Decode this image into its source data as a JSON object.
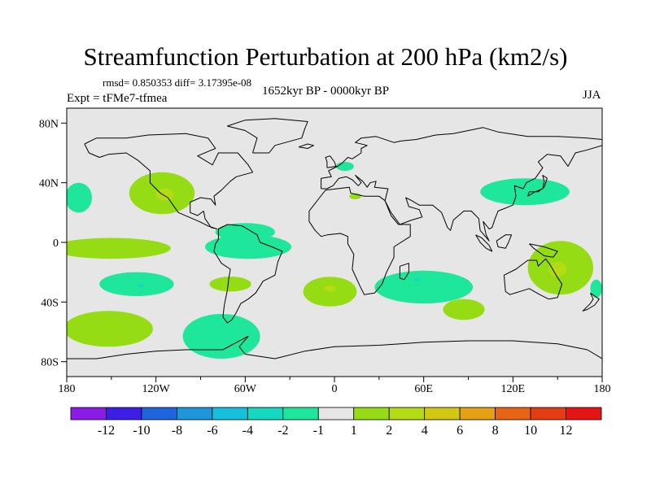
{
  "header": {
    "title": "Streamfunction Perturbation at 200 hPa (km2/s)",
    "stats": "rmsd= 0.850353 diff= 3.17395e-08",
    "experiment": "Expt = tFMe7-tfmea",
    "period": "1652kyr BP - 0000kyr BP",
    "season": "JJA"
  },
  "chart_data": {
    "type": "contour-map",
    "title": "Streamfunction Perturbation at 200 hPa (km2/s)",
    "units": "km2/s",
    "projection": "cylindrical-equidistant",
    "x_range": [
      -180,
      180
    ],
    "y_range": [
      -90,
      90
    ],
    "x_ticks": [
      {
        "value": -180,
        "label": "180"
      },
      {
        "value": -120,
        "label": "120W"
      },
      {
        "value": -60,
        "label": "60W"
      },
      {
        "value": 0,
        "label": "0"
      },
      {
        "value": 60,
        "label": "60E"
      },
      {
        "value": 120,
        "label": "120E"
      },
      {
        "value": 180,
        "label": "180"
      }
    ],
    "y_ticks": [
      {
        "value": 80,
        "label": "80N"
      },
      {
        "value": 40,
        "label": "40N"
      },
      {
        "value": 0,
        "label": "0"
      },
      {
        "value": -40,
        "label": "40S"
      },
      {
        "value": -80,
        "label": "80S"
      }
    ],
    "background_color": "#e6e6e6",
    "colorbar": {
      "labels": [
        "-12",
        "-10",
        "-8",
        "-6",
        "-4",
        "-2",
        "-1",
        "1",
        "2",
        "4",
        "6",
        "8",
        "10",
        "12"
      ],
      "colors": [
        "#8a1ce6",
        "#3c1ee6",
        "#1e64dc",
        "#1e96dc",
        "#14c0dc",
        "#14d8c0",
        "#1ee69a",
        "#e6e6e6",
        "#96dc14",
        "#b4dc14",
        "#d2c814",
        "#e6a014",
        "#e66414",
        "#e63c14",
        "#e61414"
      ]
    },
    "regions": [
      {
        "name": "north-pacific-cyclone",
        "level": "-1",
        "color": "#1ee69a",
        "lon": -172,
        "lat": 30,
        "rlon": 9,
        "rlat": 10
      },
      {
        "name": "north-america-high",
        "level": "2",
        "color": "#96dc14",
        "lon": -116,
        "lat": 33,
        "rlon": 22,
        "rlat": 14
      },
      {
        "name": "north-america-high-core",
        "level": "4",
        "color": "#b4dc14",
        "lon": -114,
        "lat": 32,
        "rlon": 6,
        "rlat": 4
      },
      {
        "name": "caribbean-trough",
        "level": "-1",
        "color": "#1ee69a",
        "lon": -60,
        "lat": 7,
        "rlon": 20,
        "rlat": 6
      },
      {
        "name": "tropical-east-pacific-trough",
        "level": "-1",
        "color": "#1ee69a",
        "lon": -58,
        "lat": -3,
        "rlon": 29,
        "rlat": 8
      },
      {
        "name": "equatorial-pacific-high",
        "level": "2",
        "color": "#96dc14",
        "lon": -150,
        "lat": -4,
        "rlon": 40,
        "rlat": 7
      },
      {
        "name": "south-pacific-trough",
        "level": "-1",
        "color": "#1ee69a",
        "lon": -133,
        "lat": -28,
        "rlon": 25,
        "rlat": 8
      },
      {
        "name": "south-pacific-trough-core",
        "level": "-2",
        "color": "#14d8c0",
        "lon": -130,
        "lat": -29,
        "rlon": 2,
        "rlat": 1
      },
      {
        "name": "south-america-high",
        "level": "2",
        "color": "#96dc14",
        "lon": -70,
        "lat": -28,
        "rlon": 14,
        "rlat": 5
      },
      {
        "name": "southeast-pacific-high",
        "level": "2",
        "color": "#96dc14",
        "lon": -152,
        "lat": -58,
        "rlon": 30,
        "rlat": 12
      },
      {
        "name": "southern-ocean-trough",
        "level": "-1",
        "color": "#1ee69a",
        "lon": -76,
        "lat": -63,
        "rlon": 26,
        "rlat": 15
      },
      {
        "name": "south-atlantic-high",
        "level": "2",
        "color": "#96dc14",
        "lon": -3,
        "lat": -33,
        "rlon": 18,
        "rlat": 10
      },
      {
        "name": "south-atlantic-high-core",
        "level": "4",
        "color": "#b4dc14",
        "lon": -3,
        "lat": -31,
        "rlon": 4,
        "rlat": 2
      },
      {
        "name": "indian-ocean-trough",
        "level": "-1",
        "color": "#1ee69a",
        "lon": 60,
        "lat": -30,
        "rlon": 33,
        "rlat": 11
      },
      {
        "name": "madagascar-trough-core",
        "level": "-2",
        "color": "#14d8c0",
        "lon": 56,
        "lat": -25,
        "rlon": 2,
        "rlat": 1
      },
      {
        "name": "south-indian-high",
        "level": "2",
        "color": "#96dc14",
        "lon": 87,
        "lat": -45,
        "rlon": 14,
        "rlat": 7
      },
      {
        "name": "north-pacific-asia-trough",
        "level": "-1",
        "color": "#1ee69a",
        "lon": 128,
        "lat": 34,
        "rlon": 30,
        "rlat": 9
      },
      {
        "name": "australia-high",
        "level": "2",
        "color": "#96dc14",
        "lon": 152,
        "lat": -17,
        "rlon": 22,
        "rlat": 18
      },
      {
        "name": "australia-high-core",
        "level": "4",
        "color": "#b4dc14",
        "lon": 150,
        "lat": -18,
        "rlon": 6,
        "rlat": 5
      },
      {
        "name": "northwest-pacific-trough",
        "level": "-1",
        "color": "#1ee69a",
        "lon": 176,
        "lat": -31,
        "rlon": 4,
        "rlat": 6
      },
      {
        "name": "north-atlantic-trough",
        "level": "-1",
        "color": "#1ee69a",
        "lon": 7,
        "lat": 51,
        "rlon": 6,
        "rlat": 3
      },
      {
        "name": "mediterranean-high",
        "level": "2",
        "color": "#96dc14",
        "lon": 14,
        "lat": 31,
        "rlon": 4,
        "rlat": 2
      }
    ]
  }
}
